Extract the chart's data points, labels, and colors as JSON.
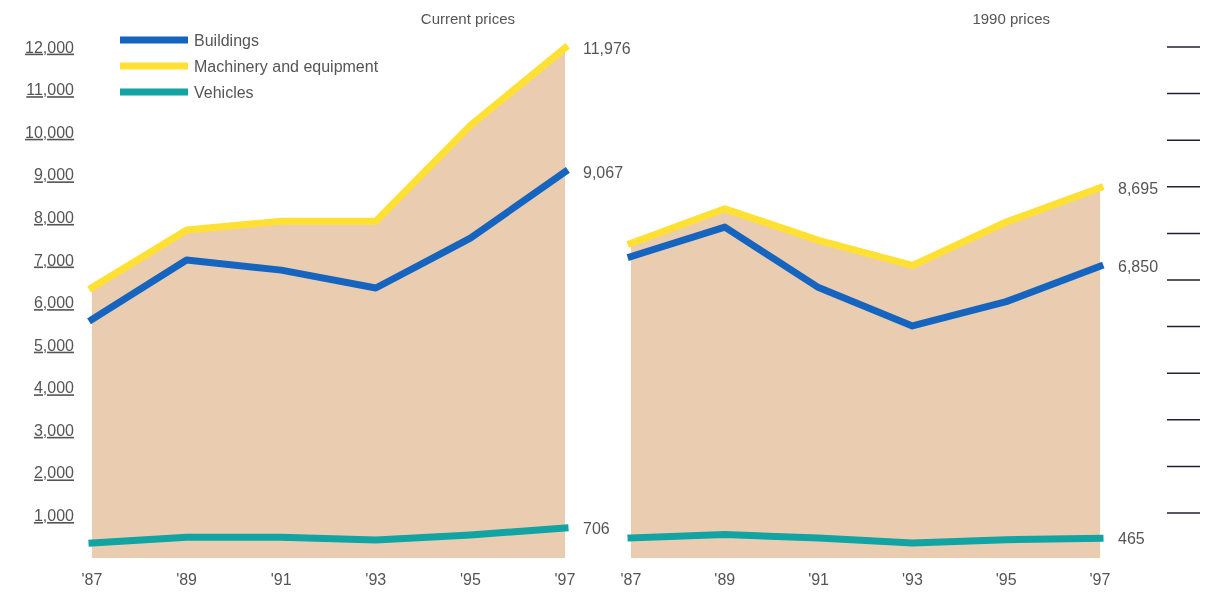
{
  "chart_data": [
    {
      "type": "line",
      "title": "Current prices",
      "categories": [
        "'87",
        "'89",
        "'91",
        "'93",
        "'95",
        "'97"
      ],
      "ylim": [
        0,
        12000
      ],
      "yticks": [
        {
          "value": 1000,
          "label": "1,000"
        },
        {
          "value": 2000,
          "label": "2,000"
        },
        {
          "value": 3000,
          "label": "3,000"
        },
        {
          "value": 4000,
          "label": "4,000"
        },
        {
          "value": 5000,
          "label": "5,000"
        },
        {
          "value": 6000,
          "label": "6,000"
        },
        {
          "value": 7000,
          "label": "7,000"
        },
        {
          "value": 8000,
          "label": "8,000"
        },
        {
          "value": 9000,
          "label": "9,000"
        },
        {
          "value": 10000,
          "label": "10,000"
        },
        {
          "value": 11000,
          "label": "11,000"
        },
        {
          "value": 12000,
          "label": "12,000"
        }
      ],
      "legend": "top left",
      "grid": false,
      "series": [
        {
          "name": "Machinery and equipment",
          "type": "area",
          "color": "#ffe033",
          "values": [
            6350,
            7700,
            7910,
            7910,
            10160,
            11976
          ],
          "value_labels": [
            null,
            null,
            null,
            null,
            null,
            "11,976"
          ]
        },
        {
          "name": "Buildings",
          "color": "#1565c0",
          "values": [
            5600,
            7000,
            6760,
            6340,
            7510,
            9067
          ],
          "value_labels": [
            null,
            null,
            null,
            null,
            null,
            "9,067"
          ]
        },
        {
          "name": "Vehicles",
          "color": "#12a3a3",
          "values": [
            350,
            490,
            490,
            420,
            540,
            706
          ],
          "value_labels": [
            null,
            null,
            null,
            null,
            null,
            "706"
          ]
        }
      ]
    },
    {
      "type": "line",
      "title": "1990 prices",
      "categories": [
        "'87",
        "'89",
        "'91",
        "'93",
        "'95",
        "'97"
      ],
      "ylim": [
        0,
        12000
      ],
      "tick_labels": "x",
      "series": [
        {
          "type": "area",
          "color": "#ffe033",
          "values": [
            7390,
            8200,
            7460,
            6870,
            7890,
            8695
          ],
          "value_labels": [
            null,
            null,
            null,
            null,
            null,
            "8,695"
          ]
        },
        {
          "color": "#1565c0",
          "values": [
            7080,
            7770,
            6350,
            5450,
            6020,
            6850
          ],
          "value_labels": [
            null,
            null,
            null,
            null,
            null,
            "6,850"
          ]
        },
        {
          "color": "#12a3a3",
          "values": [
            470,
            550,
            470,
            350,
            430,
            465
          ],
          "value_labels": [
            null,
            null,
            null,
            null,
            null,
            "465"
          ]
        }
      ]
    }
  ]
}
